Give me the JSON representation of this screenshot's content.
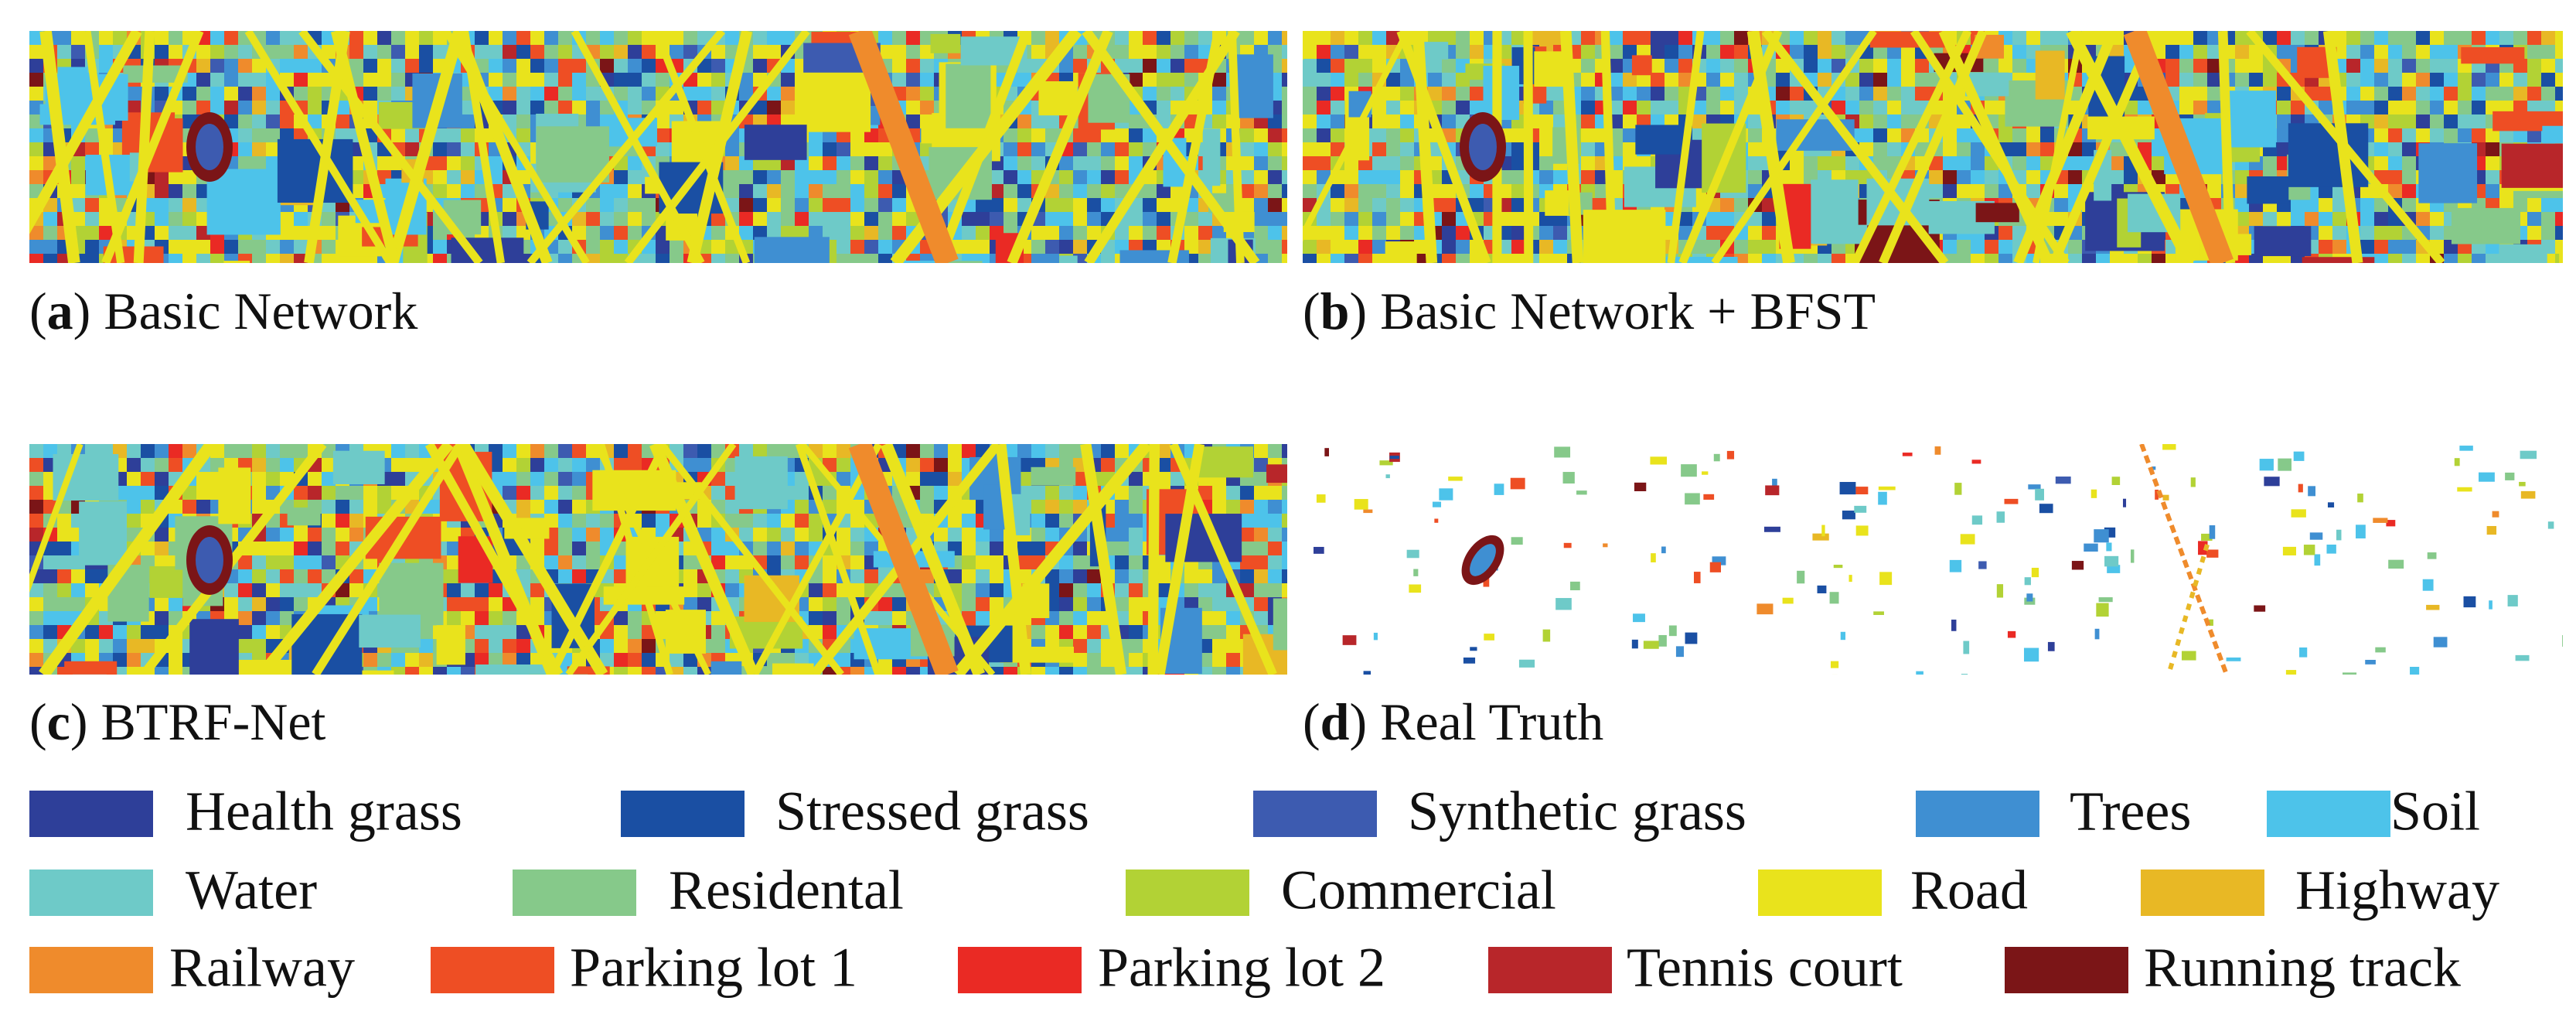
{
  "panels": [
    {
      "label": "a",
      "caption": "Basic Network"
    },
    {
      "label": "b",
      "caption": "Basic Network + BFST"
    },
    {
      "label": "c",
      "caption": "BTRF-Net"
    },
    {
      "label": "d",
      "caption": "Real Truth"
    }
  ],
  "legend": [
    {
      "name": "Health grass",
      "color": "#2e3f99"
    },
    {
      "name": "Stressed grass",
      "color": "#1a4fa3"
    },
    {
      "name": "Synthetic grass",
      "color": "#3d5bb0"
    },
    {
      "name": "Trees",
      "color": "#3f8fd2"
    },
    {
      "name": "Soil",
      "color": "#4dc3ea"
    },
    {
      "name": "Water",
      "color": "#6ecac8"
    },
    {
      "name": "Residental",
      "color": "#86c98a"
    },
    {
      "name": "Commercial",
      "color": "#b2d235"
    },
    {
      "name": "Road",
      "color": "#e9e31c"
    },
    {
      "name": "Highway",
      "color": "#e8b825"
    },
    {
      "name": "Railway",
      "color": "#ef8b2c"
    },
    {
      "name": "Parking lot 1",
      "color": "#ee4e24"
    },
    {
      "name": "Parking lot 2",
      "color": "#ea2a24"
    },
    {
      "name": "Tennis court",
      "color": "#b8262a"
    },
    {
      "name": "Running track",
      "color": "#7b1517"
    }
  ]
}
